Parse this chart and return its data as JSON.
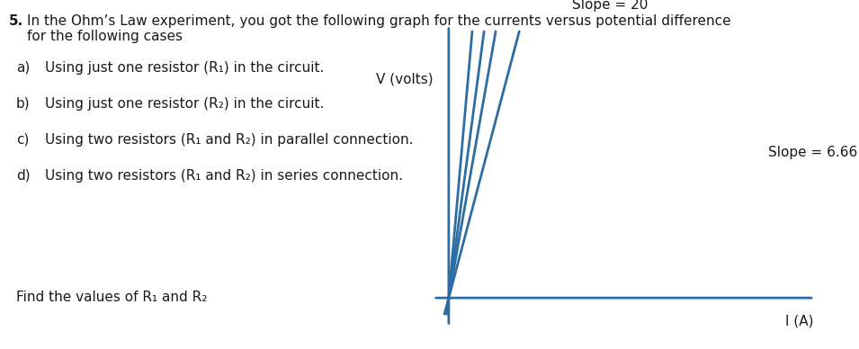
{
  "title_num": "5.",
  "title_line1": "In the Ohm’s Law experiment, you got the following graph for the currents versus potential difference",
  "title_line2": "for the following cases",
  "items_left": [
    "a)",
    "b)",
    "c)",
    "d)"
  ],
  "items_right": [
    "Using just one resistor (R₁) in the circuit.",
    "Using just one resistor (R₂) in the circuit.",
    "Using two resistors (R₁ and R₂) in parallel connection.",
    "Using two resistors (R₁ and R₂) in series connection."
  ],
  "find_text": "Find the values of R₁ and R₂",
  "slope_steep_label": "Slope = 20",
  "slope_shallow_label": "Slope = 6.66",
  "v_label": "V (volts)",
  "i_label": "I (A)",
  "line_color": "#2E6DA4",
  "axis_color": "#2E6DA4",
  "text_color": "#1a1a1a",
  "bg_color": "#ffffff",
  "slopes": [
    20,
    13.3,
    10,
    6.66
  ],
  "xlim": [
    0,
    1.0
  ],
  "ylim": [
    0,
    1.0
  ],
  "title_fontsize": 11,
  "item_fontsize": 11,
  "label_fontsize": 11
}
